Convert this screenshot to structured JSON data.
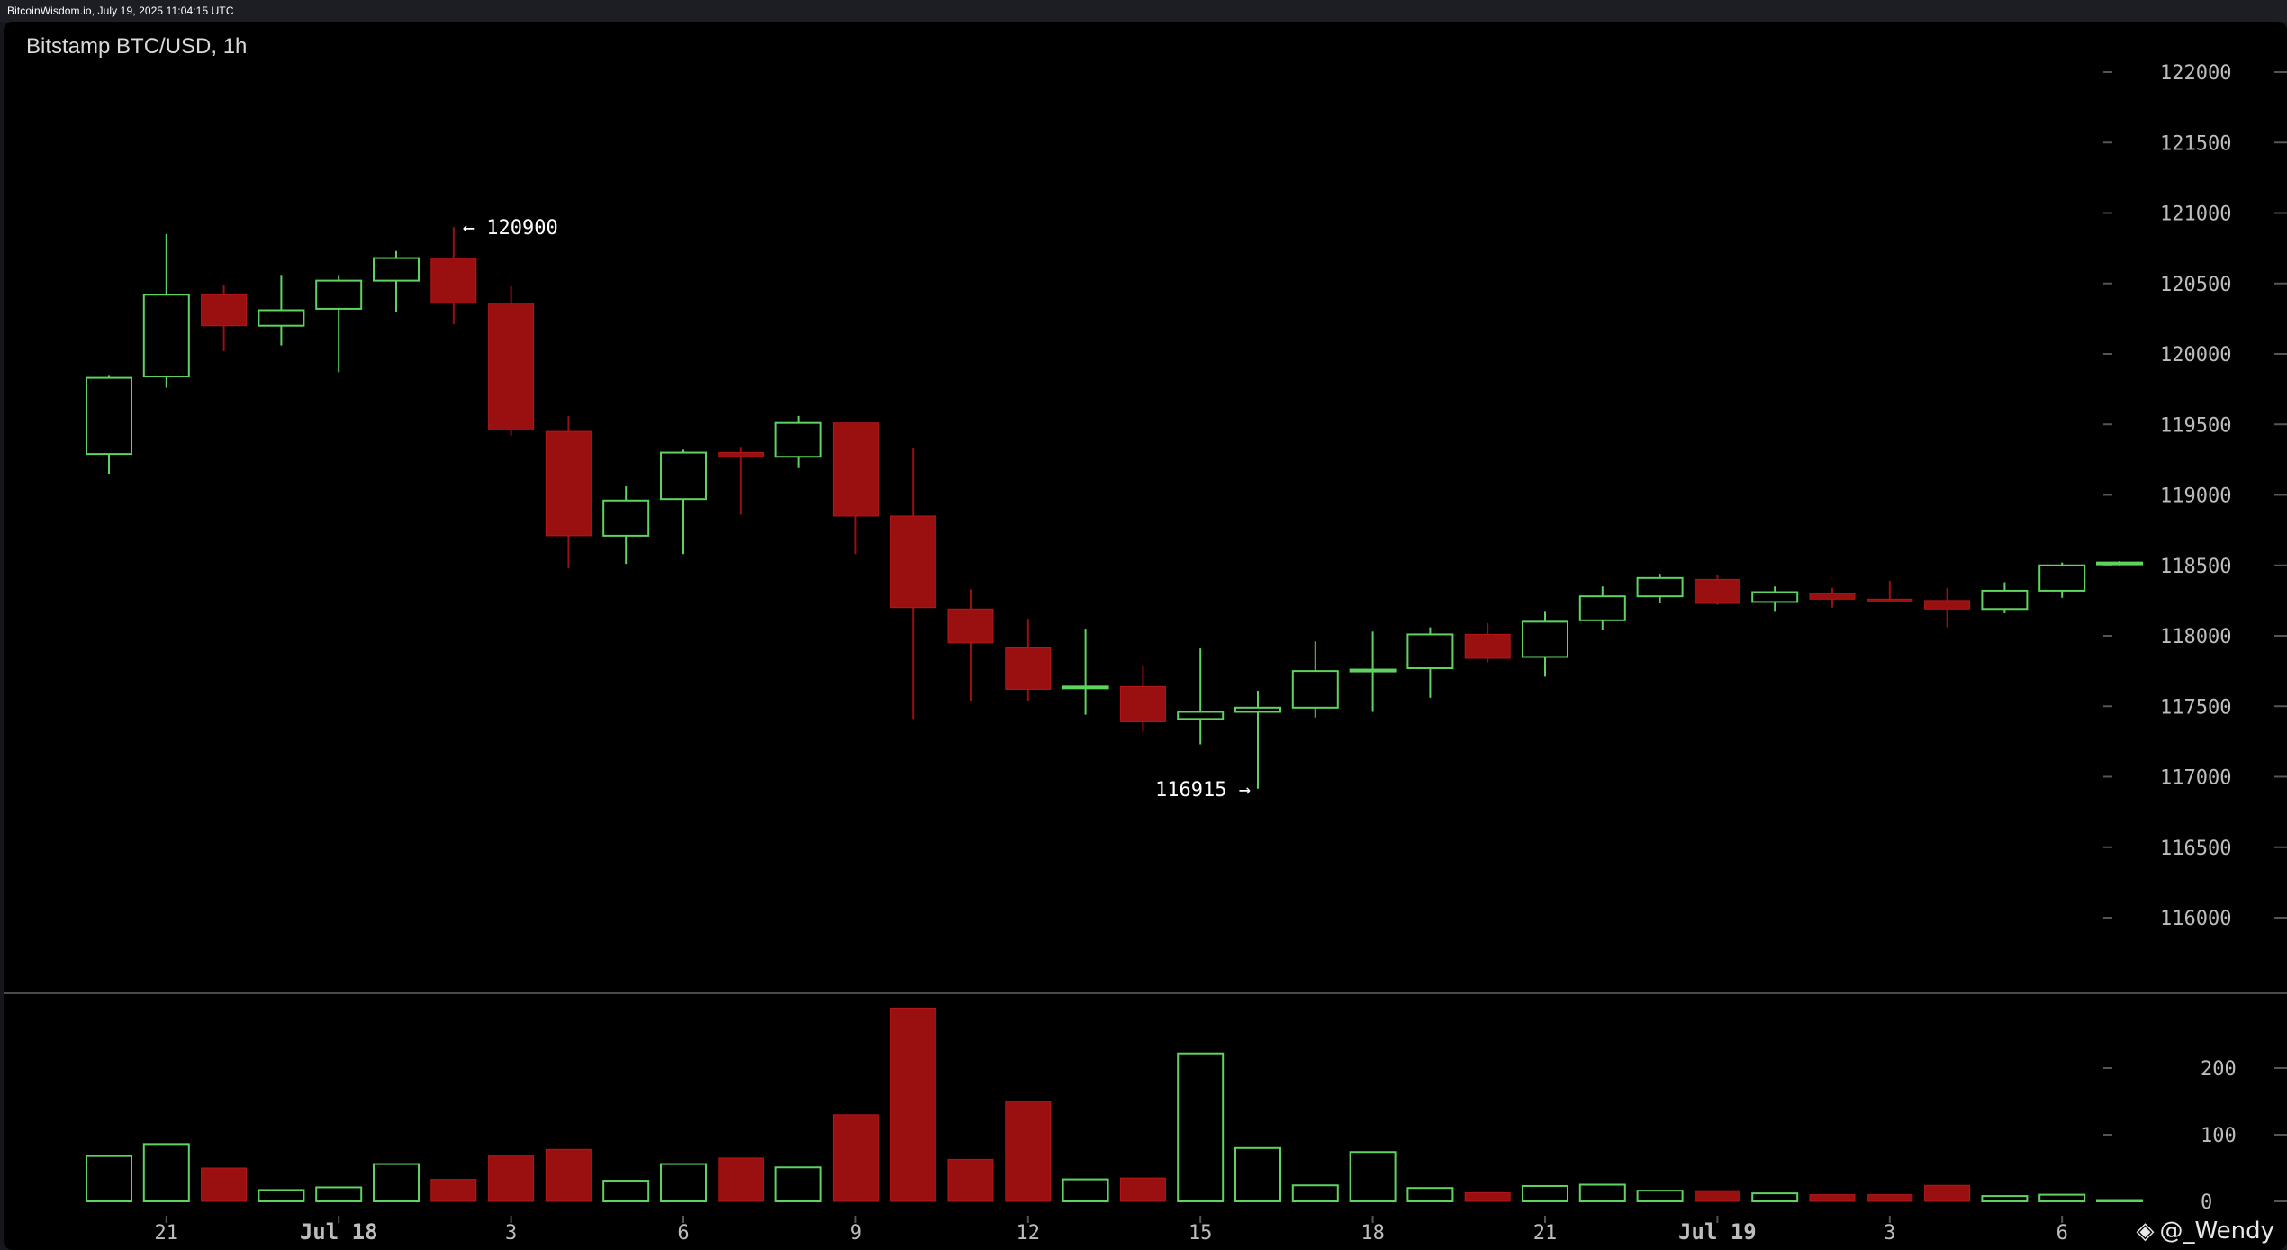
{
  "header": {
    "watermark": "BitcoinWisdom.io, July 19, 2025 11:04:15 UTC"
  },
  "author": {
    "logo_icon": "diamond-logo-icon",
    "text": "@_Wendy"
  },
  "colors": {
    "background": "#000000",
    "up": "#5fd35f",
    "down": "#9a0f0f",
    "axis_text": "#bdbdbd",
    "divider": "#3a3a3a"
  },
  "chart_data": {
    "type": "candlestick",
    "title": "Bitstamp BTC/USD, 1h",
    "price_axis": {
      "ticks": [
        116000,
        116500,
        117000,
        117500,
        118000,
        118500,
        119000,
        119500,
        120000,
        120500,
        121000,
        121500,
        122000
      ],
      "ylim": [
        115500,
        122300
      ]
    },
    "volume_axis": {
      "ticks": [
        0,
        100,
        200
      ],
      "ylim": [
        0,
        300
      ]
    },
    "x_tick_labels": [
      {
        "label": "21",
        "bar": 1,
        "emphasis": false
      },
      {
        "label": "Jul 18",
        "bar": 4,
        "emphasis": true
      },
      {
        "label": "3",
        "bar": 7,
        "emphasis": false
      },
      {
        "label": "6",
        "bar": 10,
        "emphasis": false
      },
      {
        "label": "9",
        "bar": 13,
        "emphasis": false
      },
      {
        "label": "12",
        "bar": 16,
        "emphasis": false
      },
      {
        "label": "15",
        "bar": 19,
        "emphasis": false
      },
      {
        "label": "18",
        "bar": 22,
        "emphasis": false
      },
      {
        "label": "21",
        "bar": 25,
        "emphasis": false
      },
      {
        "label": "Jul 19",
        "bar": 28,
        "emphasis": true
      },
      {
        "label": "3",
        "bar": 31,
        "emphasis": false
      },
      {
        "label": "6",
        "bar": 34,
        "emphasis": false
      }
    ],
    "annotations": {
      "high": {
        "label": "← 120900",
        "value": 120900,
        "bar": 6
      },
      "low": {
        "label": "116915 →",
        "value": 116915,
        "bar": 20
      }
    },
    "candles": [
      {
        "o": 119290,
        "h": 119850,
        "l": 119150,
        "c": 119830,
        "v": 68
      },
      {
        "o": 119840,
        "h": 120850,
        "l": 119760,
        "c": 120420,
        "v": 86
      },
      {
        "o": 120420,
        "h": 120490,
        "l": 120020,
        "c": 120200,
        "v": 50
      },
      {
        "o": 120200,
        "h": 120560,
        "l": 120060,
        "c": 120310,
        "v": 17
      },
      {
        "o": 120320,
        "h": 120560,
        "l": 119870,
        "c": 120520,
        "v": 21
      },
      {
        "o": 120520,
        "h": 120730,
        "l": 120300,
        "c": 120680,
        "v": 56
      },
      {
        "o": 120680,
        "h": 120900,
        "l": 120210,
        "c": 120360,
        "v": 33
      },
      {
        "o": 120360,
        "h": 120480,
        "l": 119420,
        "c": 119460,
        "v": 69
      },
      {
        "o": 119450,
        "h": 119560,
        "l": 118480,
        "c": 118710,
        "v": 78
      },
      {
        "o": 118710,
        "h": 119060,
        "l": 118510,
        "c": 118960,
        "v": 31
      },
      {
        "o": 118970,
        "h": 119320,
        "l": 118580,
        "c": 119300,
        "v": 56
      },
      {
        "o": 119300,
        "h": 119340,
        "l": 118860,
        "c": 119270,
        "v": 65
      },
      {
        "o": 119270,
        "h": 119560,
        "l": 119190,
        "c": 119510,
        "v": 51
      },
      {
        "o": 119510,
        "h": 119510,
        "l": 118580,
        "c": 118850,
        "v": 130
      },
      {
        "o": 118850,
        "h": 119330,
        "l": 117410,
        "c": 118200,
        "v": 290
      },
      {
        "o": 118190,
        "h": 118330,
        "l": 117540,
        "c": 117950,
        "v": 63
      },
      {
        "o": 117920,
        "h": 118120,
        "l": 117540,
        "c": 117620,
        "v": 150
      },
      {
        "o": 117630,
        "h": 118050,
        "l": 117440,
        "c": 117640,
        "v": 33
      },
      {
        "o": 117640,
        "h": 117790,
        "l": 117320,
        "c": 117390,
        "v": 35
      },
      {
        "o": 117410,
        "h": 117910,
        "l": 117230,
        "c": 117460,
        "v": 222
      },
      {
        "o": 117460,
        "h": 117610,
        "l": 116915,
        "c": 117490,
        "v": 80
      },
      {
        "o": 117490,
        "h": 117960,
        "l": 117420,
        "c": 117750,
        "v": 24
      },
      {
        "o": 117750,
        "h": 118030,
        "l": 117460,
        "c": 117760,
        "v": 74
      },
      {
        "o": 117770,
        "h": 118060,
        "l": 117560,
        "c": 118010,
        "v": 20
      },
      {
        "o": 118010,
        "h": 118090,
        "l": 117810,
        "c": 117840,
        "v": 13
      },
      {
        "o": 117850,
        "h": 118170,
        "l": 117710,
        "c": 118100,
        "v": 23
      },
      {
        "o": 118110,
        "h": 118350,
        "l": 118040,
        "c": 118280,
        "v": 25
      },
      {
        "o": 118280,
        "h": 118440,
        "l": 118230,
        "c": 118410,
        "v": 16
      },
      {
        "o": 118400,
        "h": 118430,
        "l": 118220,
        "c": 118230,
        "v": 16
      },
      {
        "o": 118240,
        "h": 118350,
        "l": 118170,
        "c": 118310,
        "v": 12
      },
      {
        "o": 118300,
        "h": 118340,
        "l": 118200,
        "c": 118260,
        "v": 10
      },
      {
        "o": 118260,
        "h": 118390,
        "l": 118240,
        "c": 118250,
        "v": 10
      },
      {
        "o": 118250,
        "h": 118340,
        "l": 118060,
        "c": 118190,
        "v": 24
      },
      {
        "o": 118190,
        "h": 118380,
        "l": 118160,
        "c": 118320,
        "v": 8
      },
      {
        "o": 118320,
        "h": 118520,
        "l": 118270,
        "c": 118500,
        "v": 10
      },
      {
        "o": 118510,
        "h": 118530,
        "l": 118500,
        "c": 118520,
        "v": 2
      }
    ]
  }
}
